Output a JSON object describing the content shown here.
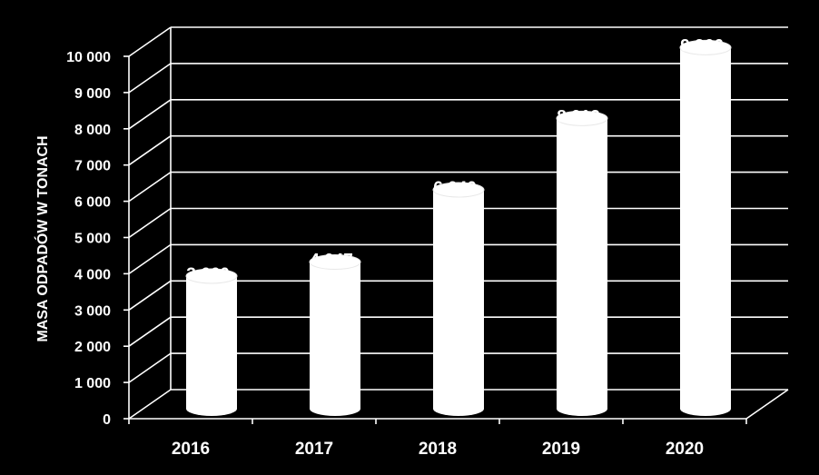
{
  "chart_data": {
    "type": "bar",
    "categories": [
      "2016",
      "2017",
      "2018",
      "2019",
      "2020"
    ],
    "values": [
      3660,
      4047,
      6040,
      8012,
      9966
    ],
    "value_labels": [
      "3 660",
      "4 047",
      "6 040",
      "8 012",
      "9 966"
    ],
    "ylabel": "MASA ODPADÓW  W TONACH",
    "ylim": [
      0,
      10000
    ],
    "yticks": [
      0,
      1000,
      2000,
      3000,
      4000,
      5000,
      6000,
      7000,
      8000,
      9000,
      10000
    ],
    "ytick_labels": [
      "0",
      "1 000",
      "2 000",
      "3 000",
      "4 000",
      "5 000",
      "6 000",
      "7 000",
      "8 000",
      "9 000",
      "10 000"
    ],
    "grid": true,
    "legend": "none",
    "style": "3d-cylinder",
    "colors": {
      "background": "#000000",
      "bars": "#ffffff",
      "grid": "#ffffff",
      "text": "#ffffff"
    }
  }
}
